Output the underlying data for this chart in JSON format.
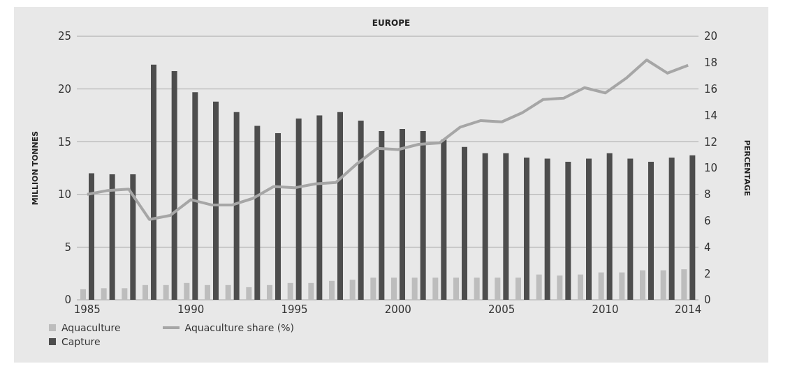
{
  "chart_data": {
    "type": "bar",
    "title": "EUROPE",
    "ylabel": "MILLION TONNES",
    "y2label": "PERCENTAGE",
    "categories": [
      "1985",
      null,
      null,
      null,
      null,
      "1990",
      null,
      null,
      null,
      null,
      "1995",
      null,
      null,
      null,
      null,
      "2000",
      null,
      null,
      null,
      null,
      "2005",
      null,
      null,
      null,
      null,
      "2010",
      null,
      null,
      null,
      "2014"
    ],
    "series": [
      {
        "name": "Aquaculture",
        "color": "#bdbdbd",
        "values": [
          1.0,
          1.1,
          1.1,
          1.4,
          1.4,
          1.6,
          1.4,
          1.4,
          1.2,
          1.4,
          1.6,
          1.6,
          1.8,
          1.9,
          2.1,
          2.1,
          2.1,
          2.1,
          2.1,
          2.1,
          2.1,
          2.1,
          2.4,
          2.3,
          2.4,
          2.6,
          2.6,
          2.8,
          2.8,
          2.9
        ]
      },
      {
        "name": "Capture",
        "color": "#4d4d4d",
        "values": [
          12.0,
          11.9,
          11.9,
          22.3,
          21.7,
          19.7,
          18.8,
          17.8,
          16.5,
          15.8,
          17.2,
          17.5,
          17.8,
          17.0,
          16.0,
          16.2,
          16.0,
          15.2,
          14.5,
          13.9,
          13.9,
          13.5,
          13.4,
          13.1,
          13.4,
          13.9,
          13.4,
          13.1,
          13.5,
          13.7
        ]
      },
      {
        "name": "Aquaculture share (%)",
        "type": "line",
        "axis": "y2",
        "color": "#a6a6a6",
        "values": [
          8.0,
          8.3,
          8.4,
          6.1,
          6.4,
          7.6,
          7.2,
          7.2,
          7.7,
          8.6,
          8.5,
          8.8,
          8.9,
          10.3,
          11.5,
          11.4,
          11.8,
          11.9,
          13.1,
          13.6,
          13.5,
          14.2,
          15.2,
          15.3,
          16.1,
          15.7,
          16.8,
          18.2,
          17.2,
          17.8
        ]
      }
    ],
    "ylim": [
      0,
      25
    ],
    "yticks": [
      0,
      5,
      10,
      15,
      20,
      25
    ],
    "y2lim": [
      0,
      20
    ],
    "y2ticks": [
      0,
      2,
      4,
      6,
      8,
      10,
      12,
      14,
      16,
      18,
      20
    ],
    "grid": "y",
    "legend": "bottom left",
    "marker": "none",
    "line_style": "solid"
  }
}
